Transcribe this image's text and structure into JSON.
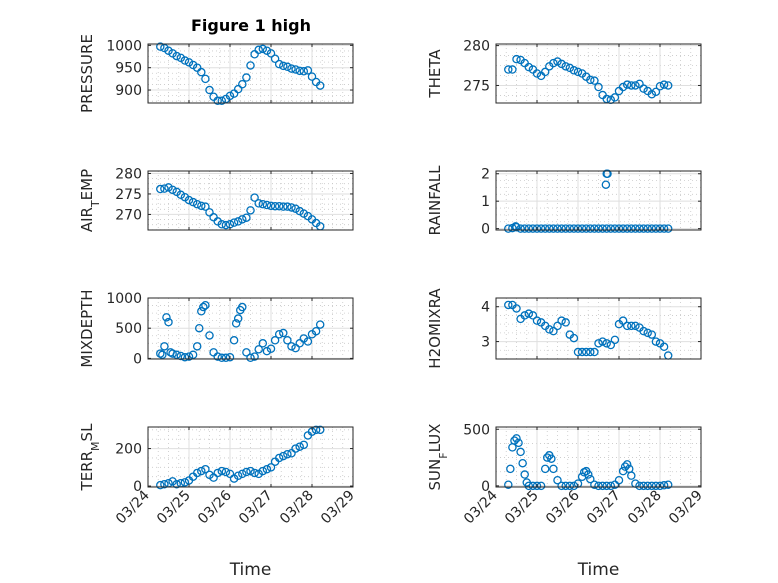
{
  "figure": {
    "title": "Figure 1 high",
    "xlabel": "Time",
    "x_tick_labels": [
      "03/24",
      "03/25",
      "03/26",
      "03/27",
      "03/28",
      "03/29"
    ]
  },
  "colors": {
    "marker": "#0072BD",
    "axis": "#262626",
    "grid": "#dfdfdf",
    "minor_grid": "#c8c8c8"
  },
  "chart_data": [
    {
      "type": "scatter",
      "id": "pressure",
      "ylabel": "PRESSURE",
      "yticks": [
        "900",
        "950",
        "1000"
      ],
      "ylim": [
        871,
        1003
      ],
      "x_unit": "days since 03/24 00:00",
      "xlim": [
        0,
        5
      ],
      "grid": true,
      "x": [
        0.3,
        0.4,
        0.5,
        0.6,
        0.7,
        0.8,
        0.9,
        1.0,
        1.1,
        1.2,
        1.3,
        1.4,
        1.5,
        1.6,
        1.7,
        1.8,
        1.9,
        2.0,
        2.1,
        2.2,
        2.3,
        2.4,
        2.5,
        2.6,
        2.7,
        2.8,
        2.9,
        3.0,
        3.1,
        3.2,
        3.3,
        3.4,
        3.5,
        3.6,
        3.7,
        3.8,
        3.9,
        4.0,
        4.1,
        4.2
      ],
      "y": [
        997,
        994,
        988,
        982,
        976,
        972,
        966,
        962,
        956,
        950,
        940,
        925,
        900,
        885,
        876,
        876,
        880,
        887,
        892,
        902,
        913,
        928,
        955,
        980,
        990,
        992,
        988,
        982,
        970,
        958,
        954,
        952,
        948,
        946,
        943,
        942,
        944,
        930,
        918,
        910
      ]
    },
    {
      "type": "scatter",
      "id": "theta",
      "ylabel": "THETA",
      "yticks": [
        "275",
        "280"
      ],
      "ylim": [
        272.8,
        280.2
      ],
      "x_unit": "days since 03/24 00:00",
      "xlim": [
        0,
        5
      ],
      "grid": true,
      "x": [
        0.3,
        0.4,
        0.5,
        0.6,
        0.7,
        0.8,
        0.9,
        1.0,
        1.1,
        1.2,
        1.3,
        1.4,
        1.5,
        1.6,
        1.7,
        1.8,
        1.9,
        2.0,
        2.1,
        2.2,
        2.3,
        2.4,
        2.5,
        2.6,
        2.7,
        2.8,
        2.9,
        3.0,
        3.1,
        3.2,
        3.3,
        3.4,
        3.5,
        3.6,
        3.7,
        3.8,
        3.9,
        4.0,
        4.1,
        4.2
      ],
      "y": [
        277,
        277,
        278.3,
        278.2,
        277.8,
        277.3,
        277,
        276.5,
        276.2,
        276.7,
        277.4,
        277.8,
        278,
        277.7,
        277.4,
        277.2,
        276.9,
        276.7,
        276.5,
        276.1,
        275.7,
        275.6,
        274.8,
        273.8,
        273.3,
        273.2,
        273.5,
        274.3,
        274.8,
        275.1,
        275,
        275,
        275.2,
        274.6,
        274.3,
        273.9,
        274.2,
        274.9,
        275.1,
        275
      ]
    },
    {
      "type": "scatter",
      "id": "air_temp",
      "ylabel": "AIR_TEMP",
      "yticks": [
        "270",
        "275",
        "280"
      ],
      "ylim": [
        266.2,
        280.6
      ],
      "x_unit": "days since 03/24 00:00",
      "xlim": [
        0,
        5
      ],
      "grid": true,
      "x": [
        0.3,
        0.4,
        0.5,
        0.6,
        0.7,
        0.8,
        0.9,
        1.0,
        1.1,
        1.2,
        1.3,
        1.4,
        1.5,
        1.6,
        1.7,
        1.8,
        1.9,
        2.0,
        2.1,
        2.2,
        2.3,
        2.4,
        2.5,
        2.6,
        2.7,
        2.8,
        2.9,
        3.0,
        3.1,
        3.2,
        3.3,
        3.4,
        3.5,
        3.6,
        3.7,
        3.8,
        3.9,
        4.0,
        4.1,
        4.2
      ],
      "y": [
        276.2,
        276.3,
        276.6,
        276,
        275.5,
        274.8,
        274.2,
        273.5,
        273,
        272.5,
        272.1,
        271.9,
        270.5,
        269.3,
        268.3,
        267.6,
        267.4,
        267.6,
        268,
        268.3,
        268.8,
        269.2,
        271,
        274.1,
        272.7,
        272.5,
        272.3,
        272.1,
        272,
        272,
        271.9,
        271.9,
        271.7,
        271.4,
        270.8,
        270.2,
        269.6,
        268.8,
        267.9,
        267.1
      ]
    },
    {
      "type": "scatter",
      "id": "rainfall",
      "ylabel": "RAINFALL",
      "yticks": [
        "0",
        "1",
        "2"
      ],
      "ylim": [
        -0.05,
        2.1
      ],
      "x_unit": "days since 03/24 00:00",
      "xlim": [
        0,
        5
      ],
      "grid": true,
      "x": [
        0.3,
        0.4,
        0.5,
        0.6,
        0.7,
        0.8,
        0.9,
        1.0,
        1.1,
        1.2,
        1.3,
        1.4,
        1.5,
        1.6,
        1.7,
        1.8,
        1.9,
        2.0,
        2.1,
        2.2,
        2.3,
        2.4,
        2.5,
        2.6,
        2.7,
        2.8,
        2.9,
        3.0,
        3.1,
        3.2,
        3.3,
        3.4,
        3.5,
        3.6,
        3.7,
        3.8,
        3.9,
        4.0,
        4.1,
        4.2,
        2.68,
        2.7,
        2.72,
        0.48
      ],
      "y": [
        0,
        0.02,
        0.05,
        0,
        0,
        0,
        0,
        0,
        0,
        0,
        0,
        0,
        0,
        0,
        0,
        0,
        0,
        0,
        0,
        0,
        0,
        0,
        0,
        0,
        0,
        0,
        0,
        0,
        0,
        0,
        0,
        0,
        0,
        0,
        0,
        0,
        0,
        0,
        0,
        0,
        1.6,
        2.0,
        2.0,
        0.08
      ]
    },
    {
      "type": "scatter",
      "id": "mixdepth",
      "ylabel": "MIXDEPTH",
      "yticks": [
        "0",
        "500",
        "1000"
      ],
      "ylim": [
        -10,
        1000
      ],
      "x_unit": "days since 03/24 00:00",
      "xlim": [
        0,
        5
      ],
      "grid": true,
      "x": [
        0.3,
        0.35,
        0.4,
        0.45,
        0.5,
        0.55,
        0.6,
        0.7,
        0.8,
        0.9,
        1.0,
        1.1,
        1.2,
        1.25,
        1.3,
        1.35,
        1.4,
        1.5,
        1.6,
        1.7,
        1.8,
        1.9,
        2.0,
        2.1,
        2.15,
        2.2,
        2.25,
        2.3,
        2.4,
        2.5,
        2.6,
        2.7,
        2.8,
        2.9,
        3.0,
        3.1,
        3.2,
        3.3,
        3.4,
        3.5,
        3.6,
        3.7,
        3.8,
        3.9,
        4.0,
        4.1,
        4.2
      ],
      "y": [
        80,
        60,
        200,
        680,
        600,
        100,
        80,
        60,
        40,
        20,
        30,
        60,
        200,
        500,
        780,
        850,
        880,
        380,
        100,
        30,
        10,
        10,
        20,
        300,
        580,
        660,
        800,
        850,
        100,
        10,
        30,
        150,
        250,
        120,
        160,
        300,
        400,
        420,
        300,
        200,
        170,
        250,
        330,
        280,
        400,
        450,
        560
      ]
    },
    {
      "type": "scatter",
      "id": "h2omixra",
      "ylabel": "H2OMIXRA",
      "yticks": [
        "3",
        "4"
      ],
      "ylim": [
        2.5,
        4.25
      ],
      "x_unit": "days since 03/24 00:00",
      "xlim": [
        0,
        5
      ],
      "grid": true,
      "x": [
        0.3,
        0.4,
        0.5,
        0.6,
        0.7,
        0.8,
        0.9,
        1.0,
        1.1,
        1.2,
        1.3,
        1.4,
        1.5,
        1.6,
        1.7,
        1.8,
        1.9,
        2.0,
        2.1,
        2.2,
        2.3,
        2.4,
        2.5,
        2.6,
        2.7,
        2.8,
        2.9,
        3.0,
        3.1,
        3.2,
        3.3,
        3.4,
        3.5,
        3.6,
        3.7,
        3.8,
        3.9,
        4.0,
        4.1,
        4.2
      ],
      "y": [
        4.05,
        4.05,
        3.95,
        3.65,
        3.75,
        3.8,
        3.75,
        3.6,
        3.55,
        3.45,
        3.35,
        3.3,
        3.45,
        3.6,
        3.55,
        3.2,
        3.1,
        2.7,
        2.7,
        2.7,
        2.7,
        2.7,
        2.95,
        3.0,
        2.95,
        2.9,
        3.05,
        3.5,
        3.6,
        3.45,
        3.45,
        3.45,
        3.4,
        3.3,
        3.25,
        3.2,
        3.0,
        2.95,
        2.85,
        2.6
      ]
    },
    {
      "type": "scatter",
      "id": "terr_msl",
      "ylabel": "TERR_MSL",
      "yticks": [
        "0",
        "200"
      ],
      "ylim": [
        -5,
        315
      ],
      "x_unit": "days since 03/24 00:00",
      "xlim": [
        0,
        5
      ],
      "grid": true,
      "x": [
        0.3,
        0.4,
        0.5,
        0.6,
        0.7,
        0.8,
        0.9,
        1.0,
        1.1,
        1.2,
        1.3,
        1.4,
        1.5,
        1.6,
        1.7,
        1.8,
        1.9,
        2.0,
        2.1,
        2.2,
        2.3,
        2.4,
        2.5,
        2.6,
        2.7,
        2.8,
        2.9,
        3.0,
        3.1,
        3.2,
        3.3,
        3.4,
        3.5,
        3.6,
        3.7,
        3.8,
        3.9,
        4.0,
        4.1,
        4.2
      ],
      "y": [
        5,
        10,
        15,
        25,
        10,
        15,
        20,
        30,
        50,
        70,
        80,
        90,
        60,
        45,
        70,
        80,
        75,
        65,
        40,
        55,
        65,
        75,
        80,
        70,
        65,
        80,
        90,
        100,
        130,
        150,
        160,
        170,
        175,
        200,
        210,
        220,
        270,
        290,
        300,
        300
      ]
    },
    {
      "type": "scatter",
      "id": "sun_flux",
      "ylabel": "SUN_FLUX",
      "yticks": [
        "0",
        "500"
      ],
      "ylim": [
        -10,
        520
      ],
      "x_unit": "days since 03/24 00:00",
      "xlim": [
        0,
        5
      ],
      "grid": true,
      "x": [
        0.3,
        0.35,
        0.4,
        0.45,
        0.5,
        0.55,
        0.6,
        0.65,
        0.7,
        0.75,
        0.8,
        0.9,
        1.0,
        1.1,
        1.2,
        1.25,
        1.3,
        1.35,
        1.4,
        1.5,
        1.6,
        1.7,
        1.8,
        1.9,
        2.0,
        2.1,
        2.15,
        2.2,
        2.25,
        2.3,
        2.4,
        2.5,
        2.6,
        2.7,
        2.8,
        2.9,
        3.0,
        3.1,
        3.15,
        3.2,
        3.25,
        3.3,
        3.4,
        3.5,
        3.6,
        3.7,
        3.8,
        3.9,
        4.0,
        4.1,
        4.2
      ],
      "y": [
        10,
        150,
        340,
        400,
        420,
        380,
        300,
        200,
        100,
        30,
        0,
        0,
        0,
        0,
        150,
        250,
        270,
        240,
        150,
        50,
        0,
        0,
        0,
        0,
        20,
        80,
        120,
        130,
        100,
        60,
        10,
        0,
        0,
        0,
        0,
        10,
        50,
        130,
        170,
        190,
        150,
        90,
        20,
        0,
        0,
        0,
        0,
        0,
        0,
        5,
        10
      ]
    }
  ]
}
